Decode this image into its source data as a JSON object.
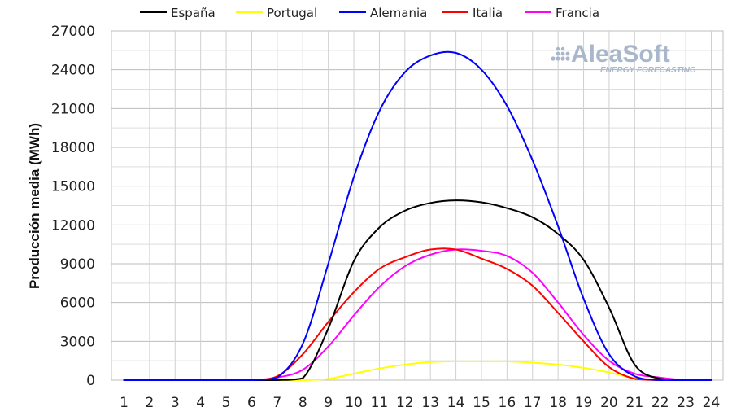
{
  "chart_data": {
    "type": "line",
    "title": "",
    "xlabel": "",
    "ylabel": "Producción media (MWh)",
    "x": [
      1,
      2,
      3,
      4,
      5,
      6,
      7,
      8,
      9,
      10,
      11,
      12,
      13,
      14,
      15,
      16,
      17,
      18,
      19,
      20,
      21,
      22,
      23,
      24
    ],
    "xlim": [
      1,
      24
    ],
    "ylim": [
      0,
      27000
    ],
    "yticks": [
      0,
      3000,
      6000,
      9000,
      12000,
      15000,
      18000,
      21000,
      24000,
      27000
    ],
    "grid": true,
    "legend_position": "top",
    "series": [
      {
        "name": "España",
        "color": "#000000",
        "values": [
          0,
          0,
          0,
          0,
          0,
          0,
          0,
          150,
          4000,
          9200,
          11800,
          13100,
          13700,
          13900,
          13750,
          13300,
          12600,
          11300,
          9300,
          5600,
          1200,
          100,
          0,
          0
        ]
      },
      {
        "name": "Portugal",
        "color": "#ffff00",
        "values": [
          0,
          0,
          0,
          0,
          0,
          0,
          0,
          0,
          100,
          500,
          900,
          1200,
          1400,
          1450,
          1450,
          1450,
          1350,
          1200,
          950,
          600,
          150,
          0,
          0,
          0
        ]
      },
      {
        "name": "Alemania",
        "color": "#0000ff",
        "values": [
          0,
          0,
          0,
          0,
          0,
          0,
          200,
          2800,
          9000,
          15700,
          20800,
          23800,
          25100,
          25300,
          24000,
          21200,
          17000,
          11900,
          6300,
          2000,
          300,
          0,
          0,
          0
        ]
      },
      {
        "name": "Italia",
        "color": "#ff0000",
        "values": [
          0,
          0,
          0,
          0,
          0,
          0,
          300,
          2000,
          4500,
          6800,
          8600,
          9500,
          10100,
          10100,
          9400,
          8600,
          7300,
          5200,
          3000,
          1000,
          100,
          0,
          0,
          0
        ]
      },
      {
        "name": "Francia",
        "color": "#ff00ff",
        "values": [
          0,
          0,
          0,
          0,
          0,
          0,
          200,
          800,
          2600,
          5000,
          7200,
          8800,
          9700,
          10100,
          10000,
          9600,
          8300,
          6000,
          3500,
          1500,
          500,
          200,
          0,
          0
        ]
      }
    ]
  },
  "watermark": {
    "brand": "AleaSoft",
    "tagline": "ENERGY FORECASTING"
  }
}
